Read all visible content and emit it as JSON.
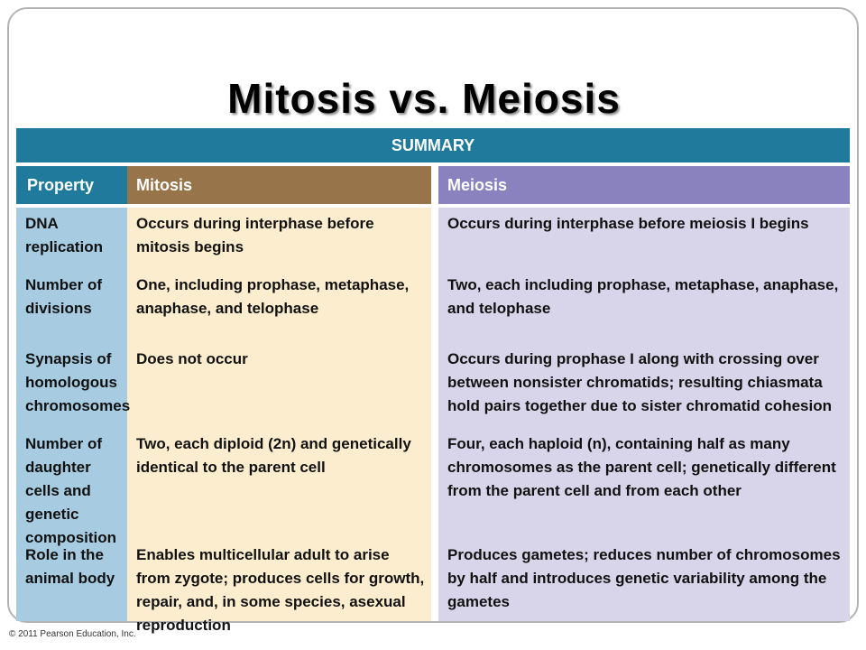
{
  "title": "Mitosis vs. Meiosis",
  "summary_label": "SUMMARY",
  "headers": {
    "property": "Property",
    "mitosis": "Mitosis",
    "meiosis": "Meiosis"
  },
  "rows": [
    {
      "property": "DNA replication",
      "mitosis": "Occurs during interphase before mitosis begins",
      "meiosis": "Occurs during interphase before meiosis I begins"
    },
    {
      "property": "Number of divisions",
      "mitosis": "One, including prophase, metaphase, anaphase, and telophase",
      "meiosis": "Two, each including prophase, metaphase, anaphase, and telophase"
    },
    {
      "property": "Synapsis of homologous chromosomes",
      "mitosis": "Does not occur",
      "meiosis": "Occurs during prophase I along with crossing over between nonsister chromatids; resulting chiasmata hold pairs together due to sister chromatid cohesion"
    },
    {
      "property": "Number of daughter cells and genetic composition",
      "mitosis": "Two, each diploid (2n) and genetically identical to the parent cell",
      "meiosis": "Four, each haploid (n), containing half as many chromosomes as the parent cell; genetically different from the parent cell and from each other"
    },
    {
      "property": "Role in the animal body",
      "mitosis": "Enables multicellular adult to arise from zygote; produces cells for growth, repair, and, in some species, asexual reproduction",
      "meiosis": "Produces gametes; reduces number of chromosomes by half and introduces genetic variability among the gametes"
    }
  ],
  "copyright": "© 2011 Pearson Education, Inc.",
  "colors": {
    "teal_bar": "#1f7a9c",
    "mitosis_header": "#98744a",
    "meiosis_header": "#8a82be",
    "property_bg": "#a7cbe0",
    "mitosis_bg": "#fdedcf",
    "meiosis_bg": "#d8d4e9"
  }
}
